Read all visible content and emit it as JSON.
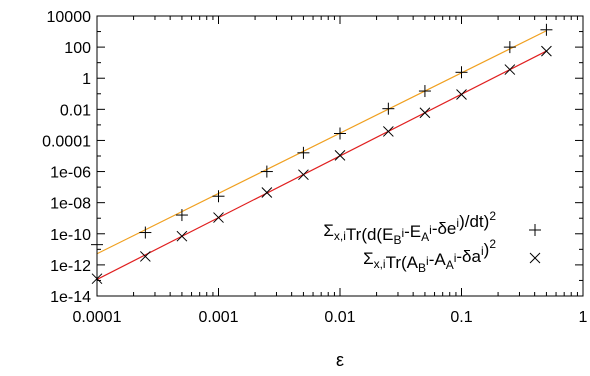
{
  "chart_data": {
    "type": "scatter",
    "xscale": "log",
    "yscale": "log",
    "xlim": [
      0.0001,
      1
    ],
    "ylim": [
      1e-14,
      10000
    ],
    "xlabel": "ε",
    "ylabel": "",
    "xticks": [
      {
        "v": 0.0001,
        "label": "0.0001"
      },
      {
        "v": 0.001,
        "label": "0.001"
      },
      {
        "v": 0.01,
        "label": "0.01"
      },
      {
        "v": 0.1,
        "label": "0.1"
      },
      {
        "v": 1,
        "label": "1"
      }
    ],
    "yticks": [
      {
        "v": 1e-14,
        "label": "1e-14"
      },
      {
        "v": 1e-12,
        "label": "1e-12"
      },
      {
        "v": 1e-10,
        "label": "1e-10"
      },
      {
        "v": 1e-08,
        "label": "1e-08"
      },
      {
        "v": 1e-06,
        "label": "1e-06"
      },
      {
        "v": 0.0001,
        "label": "0.0001"
      },
      {
        "v": 0.01,
        "label": "0.01"
      },
      {
        "v": 1,
        "label": "1"
      },
      {
        "v": 100,
        "label": "100"
      },
      {
        "v": 10000,
        "label": "10000"
      }
    ],
    "legend_position": "bottom-right",
    "series": [
      {
        "name": "Σx,iTr(d(EBi-EAi-δei)/dt)2",
        "legend": {
          "parts": [
            {
              "t": "Σ"
            },
            {
              "t": "x,i",
              "s": "sub"
            },
            {
              "t": "Tr(d(E"
            },
            {
              "t": "B",
              "s": "sub"
            },
            {
              "t": "i",
              "s": "sup"
            },
            {
              "t": "-E"
            },
            {
              "t": "A",
              "s": "sub"
            },
            {
              "t": "i",
              "s": "sup"
            },
            {
              "t": "-δe"
            },
            {
              "t": "i",
              "s": "sup"
            },
            {
              "t": ")/dt)"
            },
            {
              "t": "2",
              "s": "sup"
            }
          ]
        },
        "marker": "plus",
        "color": "#000000",
        "line_color": "#f0a020",
        "x": [
          0.0001,
          0.00025,
          0.0005,
          0.001,
          0.0025,
          0.005,
          0.01,
          0.025,
          0.05,
          0.1,
          0.25,
          0.5
        ],
        "y": [
          2e-11,
          1.2e-10,
          1.6e-09,
          2.6e-08,
          1e-06,
          1.6e-05,
          0.00028,
          0.011,
          0.15,
          2.4,
          100,
          1300
        ]
      },
      {
        "name": "Σx,iTr(AB i-AA i-δai)2",
        "legend": {
          "parts": [
            {
              "t": "Σ"
            },
            {
              "t": "x,i",
              "s": "sub"
            },
            {
              "t": "Tr(A"
            },
            {
              "t": "B",
              "s": "sub"
            },
            {
              "t": "i",
              "s": "sup"
            },
            {
              "t": "-A"
            },
            {
              "t": "A",
              "s": "sub"
            },
            {
              "t": "i",
              "s": "sup"
            },
            {
              "t": "-δa"
            },
            {
              "t": "i",
              "s": "sup"
            },
            {
              "t": ")"
            },
            {
              "t": "2",
              "s": "sup"
            }
          ]
        },
        "marker": "cross",
        "color": "#000000",
        "line_color": "#e02020",
        "x": [
          0.0001,
          0.00025,
          0.0005,
          0.001,
          0.0025,
          0.005,
          0.01,
          0.025,
          0.05,
          0.1,
          0.25,
          0.5
        ],
        "y": [
          1.3e-13,
          3.5e-12,
          7e-11,
          1.1e-09,
          4.5e-08,
          6.3e-07,
          1.1e-05,
          0.00038,
          0.006,
          0.09,
          3.6,
          55
        ]
      }
    ]
  }
}
